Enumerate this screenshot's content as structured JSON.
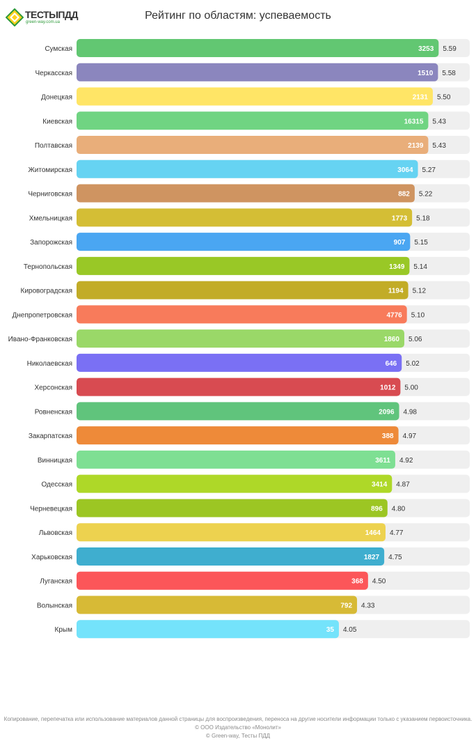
{
  "logo": {
    "brand": "ТЕСТЫ",
    "brand_bold": "ПДД",
    "site": "green-way.com.ua"
  },
  "title": "Рейтинг по областям: успеваемость",
  "chart_data": {
    "type": "bar",
    "orientation": "horizontal",
    "title": "Рейтинг по областям: успеваемость",
    "xlim": [
      0,
      6.07
    ],
    "categories": [
      "Сумская",
      "Черкасская",
      "Донецкая",
      "Киевская",
      "Полтавская",
      "Житомирская",
      "Черниговская",
      "Хмельницкая",
      "Запорожская",
      "Тернопольская",
      "Кировоградская",
      "Днепропетровская",
      "Ивано-Франковская",
      "Николаевская",
      "Херсонская",
      "Ровненская",
      "Закарпатская",
      "Винницкая",
      "Одесская",
      "Черневецкая",
      "Львовская",
      "Харьковская",
      "Луганская",
      "Волынская",
      "Крым"
    ],
    "values": [
      5.59,
      5.58,
      5.5,
      5.43,
      5.43,
      5.27,
      5.22,
      5.18,
      5.15,
      5.14,
      5.12,
      5.1,
      5.06,
      5.02,
      5.0,
      4.98,
      4.97,
      4.92,
      4.87,
      4.8,
      4.77,
      4.75,
      4.5,
      4.33,
      4.05
    ],
    "value_labels": [
      "5.59",
      "5.58",
      "5.50",
      "5.43",
      "5.43",
      "5.27",
      "5.22",
      "5.18",
      "5.15",
      "5.14",
      "5.12",
      "5.10",
      "5.06",
      "5.02",
      "5.00",
      "4.98",
      "4.97",
      "4.92",
      "4.87",
      "4.80",
      "4.77",
      "4.75",
      "4.50",
      "4.33",
      "4.05"
    ],
    "counts": [
      "3253",
      "1510",
      "2131",
      "16315",
      "2139",
      "3064",
      "882",
      "1773",
      "907",
      "1349",
      "1194",
      "4776",
      "1860",
      "646",
      "1012",
      "2096",
      "388",
      "3611",
      "3414",
      "896",
      "1464",
      "1827",
      "368",
      "792",
      "35"
    ],
    "colors": [
      "#62c772",
      "#8b86be",
      "#ffe566",
      "#70d482",
      "#e9ae7a",
      "#66d3f2",
      "#cf9461",
      "#d4be35",
      "#4aa6f2",
      "#99c826",
      "#c2ac27",
      "#f87b5b",
      "#9ad868",
      "#7a70f4",
      "#d84b51",
      "#60c47c",
      "#ee8a39",
      "#7edf93",
      "#aed828",
      "#9cc623",
      "#edd24f",
      "#3faecf",
      "#fc5659",
      "#d7ba36",
      "#74e3fb"
    ],
    "track_color": "#efefef"
  },
  "footer": {
    "line1": "Копирование, перепечатка или использование материалов данной страницы для воспроизведения, переноса на другие носители информации только с указанием первоисточника.",
    "line2": "© ООО Издательство «Монолит»",
    "line3": "© Green-way, Тесты ПДД"
  }
}
